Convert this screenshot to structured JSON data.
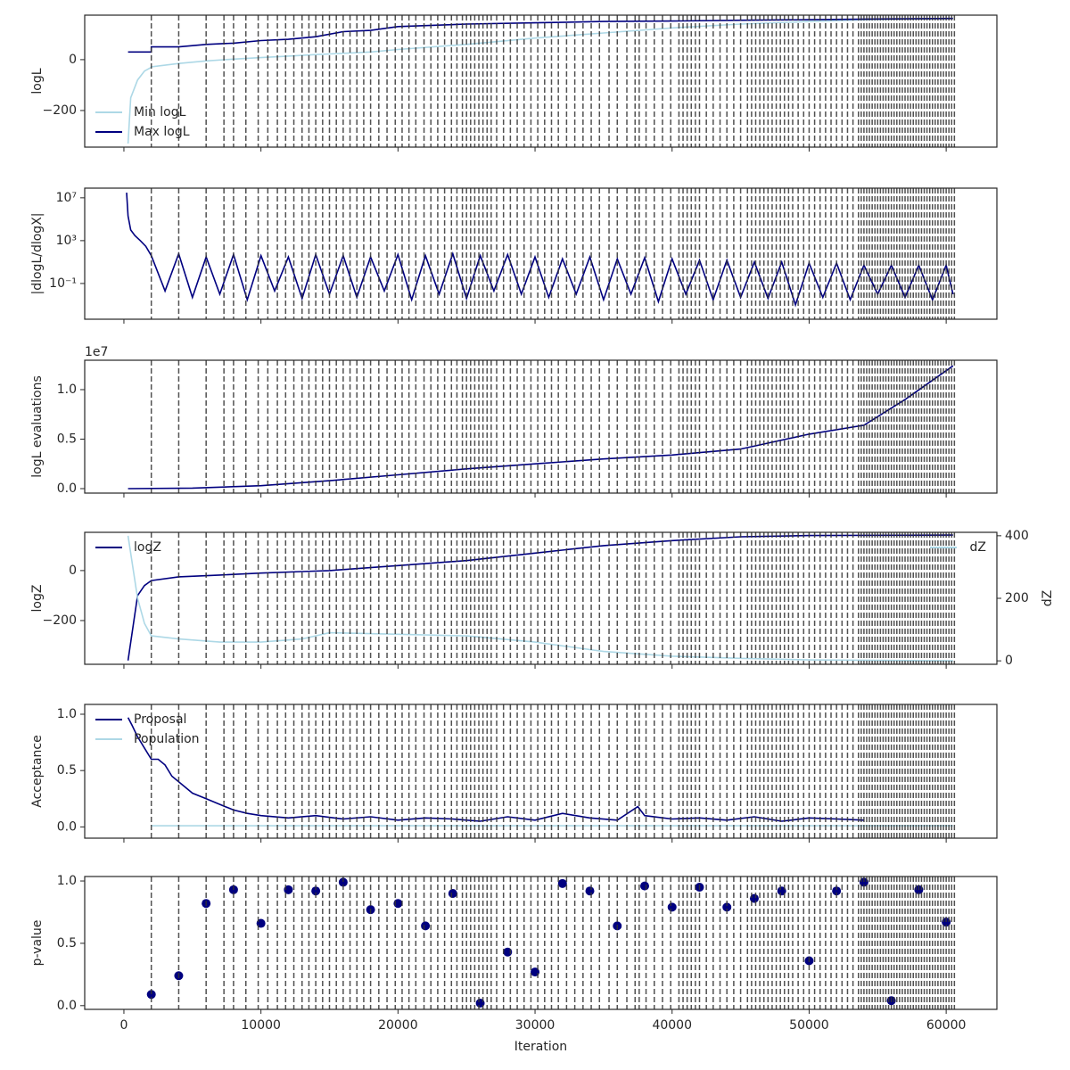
{
  "vlines": [
    2000,
    4000,
    6000,
    7300,
    8000,
    8900,
    9800,
    10500,
    11200,
    11800,
    12400,
    13000,
    13500,
    14000,
    14500,
    15000,
    15500,
    16000,
    16500,
    17000,
    17500,
    18000,
    18600,
    19200,
    19800,
    20300,
    20800,
    21300,
    21900,
    22400,
    22900,
    23400,
    23900,
    24300,
    24700,
    25000,
    25300,
    25600,
    25900,
    26200,
    26500,
    26800,
    27200,
    27700,
    28200,
    28700,
    29200,
    29700,
    30200,
    30700,
    31200,
    31700,
    32300,
    32900,
    33500,
    34100,
    34700,
    35400,
    36000,
    36700,
    37300,
    37600,
    38100,
    38700,
    39300,
    39900,
    40500,
    40800,
    41100,
    41400,
    41700,
    42000,
    42500,
    43000,
    43500,
    44000,
    44500,
    45000,
    45500,
    45800,
    46100,
    46400,
    46700,
    47000,
    47300,
    47600,
    47900,
    48200,
    48500,
    48800,
    49200,
    49600,
    50000,
    50400,
    50800,
    51200,
    51600,
    52000,
    52400,
    52800,
    53200,
    53600,
    53800,
    54000,
    54200,
    54400,
    54600,
    54800,
    55000,
    55200,
    55400,
    55600,
    55800,
    56000,
    56200,
    56400,
    56600,
    56800,
    57000,
    57200,
    57400,
    57600,
    57800,
    58000,
    58200,
    58400,
    58600,
    58800,
    59000,
    59200,
    59400,
    59600,
    59800,
    60000,
    60200,
    60400,
    60600
  ],
  "chart_data": [
    {
      "type": "line",
      "ylabel": "logL",
      "xlim": [
        -2860,
        63700
      ],
      "ylim": [
        -344,
        175
      ],
      "yticks": [
        {
          "value": -200,
          "label": "−200"
        },
        0
      ],
      "legend": "lower left",
      "x": [
        300,
        500,
        1000,
        1500,
        2000,
        2001,
        4000,
        6000,
        8000,
        10000,
        12000,
        14000,
        16000,
        18000,
        20000,
        25000,
        30000,
        35000,
        40000,
        45000,
        50000,
        55000,
        60500
      ],
      "series": [
        {
          "name": "Min logL",
          "color": "#add8e6",
          "values": [
            -330,
            -150,
            -80,
            -45,
            -30,
            -28,
            -15,
            -5,
            2,
            8,
            14,
            20,
            25,
            30,
            40,
            60,
            85,
            105,
            125,
            140,
            150,
            158,
            162
          ]
        },
        {
          "name": "Max logL",
          "color": "#000080",
          "values": [
            30,
            30,
            30,
            30,
            30,
            50,
            50,
            60,
            65,
            75,
            80,
            90,
            110,
            115,
            130,
            140,
            145,
            150,
            152,
            155,
            157,
            160,
            162
          ]
        }
      ]
    },
    {
      "type": "line",
      "ylabel": "|dlogL/dlogX|",
      "yscale": "log",
      "xlim": [
        -2860,
        63700
      ],
      "ylim": [
        4.6e-05,
        80000000
      ],
      "yticks": [
        {
          "value": 10000000,
          "label": "10⁷"
        },
        {
          "value": 1000,
          "label": "10³"
        },
        {
          "value": 0.1,
          "label": "10⁻¹"
        }
      ],
      "x": [
        200,
        300,
        500,
        800,
        1200,
        1600,
        2000,
        3000,
        4000,
        5000,
        6000,
        7000,
        8000,
        9000,
        10000,
        11000,
        12000,
        13000,
        14000,
        15000,
        16000,
        17000,
        18000,
        19000,
        20000,
        21000,
        22000,
        23000,
        24000,
        25000,
        26000,
        27000,
        28000,
        29000,
        30000,
        31000,
        32000,
        33000,
        34000,
        35000,
        36000,
        37000,
        38000,
        39000,
        40000,
        41000,
        42000,
        43000,
        44000,
        45000,
        46000,
        47000,
        48000,
        49000,
        50000,
        51000,
        52000,
        53000,
        54000,
        55000,
        56000,
        57000,
        58000,
        59000,
        60000,
        60500
      ],
      "series": [
        {
          "color": "#000080",
          "values": [
            30000000,
            200000,
            10000,
            3000,
            1000,
            300,
            40,
            0.02,
            60,
            0.005,
            30,
            0.01,
            50,
            0.003,
            40,
            0.02,
            30,
            0.004,
            50,
            0.01,
            40,
            0.005,
            30,
            0.02,
            50,
            0.003,
            40,
            0.01,
            60,
            0.004,
            40,
            0.02,
            50,
            0.01,
            30,
            0.005,
            20,
            0.01,
            30,
            0.003,
            20,
            0.01,
            25,
            0.002,
            20,
            0.01,
            15,
            0.003,
            15,
            0.005,
            10,
            0.004,
            10,
            0.001,
            8,
            0.005,
            8,
            0.003,
            5,
            0.01,
            5,
            0.005,
            5,
            0.003,
            5,
            0.01
          ]
        }
      ]
    },
    {
      "type": "line",
      "ylabel": "logL evaluations",
      "offset_label": "1e7",
      "xlim": [
        -2860,
        63700
      ],
      "ylim": [
        -450000,
        12970000
      ],
      "yticks": [
        {
          "value": 0,
          "label": "0.0"
        },
        {
          "value": 5000000,
          "label": "0.5"
        },
        {
          "value": 10000000,
          "label": "1.0"
        }
      ],
      "x": [
        300,
        5000,
        10000,
        15000,
        20000,
        25000,
        30000,
        35000,
        40000,
        45000,
        50000,
        54000,
        57000,
        60500
      ],
      "series": [
        {
          "color": "#000080",
          "values": [
            0,
            50000,
            300000,
            800000,
            1400000,
            2000000,
            2500000,
            3000000,
            3400000,
            4000000,
            5500000,
            6400000,
            9000000,
            12400000
          ]
        }
      ]
    },
    {
      "type": "line",
      "ylabel": "logZ",
      "y2label": "dZ",
      "xlim": [
        -2860,
        63700
      ],
      "ylim": [
        -375,
        153
      ],
      "y2lim": [
        -11,
        411
      ],
      "yticks": [
        {
          "value": -200,
          "label": "−200"
        },
        0
      ],
      "y2ticks": [
        0,
        200,
        400
      ],
      "legend": "upper left",
      "legend2": "upper right",
      "x": [
        300,
        1000,
        1500,
        2000,
        4000,
        7000,
        10000,
        13000,
        15000,
        20000,
        25000,
        30000,
        35000,
        40000,
        45000,
        50000,
        60500
      ],
      "series": [
        {
          "name": "logZ",
          "color": "#000080",
          "values": [
            -360,
            -100,
            -60,
            -40,
            -25,
            -18,
            -10,
            -4,
            0,
            20,
            40,
            70,
            100,
            120,
            135,
            140,
            142
          ]
        },
        {
          "name": "dZ",
          "color": "#add8e6",
          "axis": "y2",
          "values": [
            400,
            200,
            120,
            80,
            70,
            60,
            60,
            70,
            90,
            85,
            80,
            60,
            30,
            15,
            8,
            3,
            0
          ]
        }
      ]
    },
    {
      "type": "line",
      "ylabel": "Acceptance",
      "xlim": [
        -2860,
        63700
      ],
      "ylim": [
        -0.1,
        1.087
      ],
      "yticks": [
        {
          "value": 0,
          "label": "0.0"
        },
        0.5,
        {
          "value": 1,
          "label": "1.0"
        }
      ],
      "legend": "upper left",
      "x": [
        300,
        600,
        1000,
        1500,
        2000,
        2500,
        3000,
        3500,
        4000,
        4500,
        5000,
        6000,
        7000,
        8000,
        9000,
        10000,
        12000,
        14000,
        16000,
        18000,
        20000,
        22000,
        24000,
        26000,
        28000,
        30000,
        32000,
        34000,
        36000,
        37500,
        38000,
        40000,
        42000,
        44000,
        46000,
        48000,
        50000,
        52000,
        54000,
        56000,
        58000,
        60500
      ],
      "series": [
        {
          "name": "Proposal",
          "color": "#000080",
          "values": [
            0.97,
            0.9,
            0.8,
            0.7,
            0.6,
            0.6,
            0.55,
            0.45,
            0.4,
            0.35,
            0.3,
            0.25,
            0.2,
            0.15,
            0.12,
            0.1,
            0.08,
            0.1,
            0.07,
            0.09,
            0.06,
            0.08,
            0.07,
            0.05,
            0.09,
            0.06,
            0.12,
            0.08,
            0.06,
            0.18,
            0.1,
            0.07,
            0.08,
            0.06,
            0.09,
            0.05,
            0.08,
            0.07,
            0.06,
            null,
            null,
            null
          ]
        },
        {
          "name": "Population",
          "color": "#add8e6",
          "values": [
            null,
            null,
            null,
            null,
            0.01,
            0.01,
            0.01,
            0.01,
            0.01,
            0.01,
            0.01,
            0.01,
            0.01,
            0.01,
            0.01,
            0.01,
            0.01,
            0.01,
            0.01,
            0.01,
            0.01,
            0.01,
            0.01,
            0.01,
            0.01,
            0.01,
            0.01,
            0.01,
            0.01,
            0.01,
            0.01,
            0.01,
            0.01,
            0.01,
            0.01,
            0.01,
            0.01,
            0.01,
            0.01,
            0.01,
            0.01,
            0.01
          ]
        }
      ]
    },
    {
      "type": "scatter",
      "ylabel": "p-value",
      "xlabel": "Iteration",
      "xlim": [
        -2860,
        63700
      ],
      "xticks": [
        0,
        10000,
        20000,
        30000,
        40000,
        50000,
        60000
      ],
      "ylim": [
        -0.03,
        1.036
      ],
      "yticks": [
        {
          "value": 0,
          "label": "0.0"
        },
        0.5,
        {
          "value": 1,
          "label": "1.0"
        }
      ],
      "x": [
        2000,
        4000,
        6000,
        8000,
        10000,
        12000,
        14000,
        16000,
        18000,
        20000,
        22000,
        24000,
        26000,
        28000,
        30000,
        32000,
        34000,
        36000,
        38000,
        40000,
        42000,
        44000,
        46000,
        48000,
        50000,
        52000,
        54000,
        56000,
        58000,
        60000
      ],
      "series": [
        {
          "color": "#000080",
          "values": [
            0.09,
            0.24,
            0.82,
            0.93,
            0.66,
            0.93,
            0.92,
            0.99,
            0.77,
            0.82,
            0.64,
            0.9,
            0.02,
            0.43,
            0.27,
            0.98,
            0.92,
            0.64,
            0.96,
            0.79,
            0.95,
            0.79,
            0.86,
            0.92,
            0.36,
            0.92,
            0.99,
            0.04,
            0.93,
            0.67
          ]
        }
      ]
    }
  ]
}
